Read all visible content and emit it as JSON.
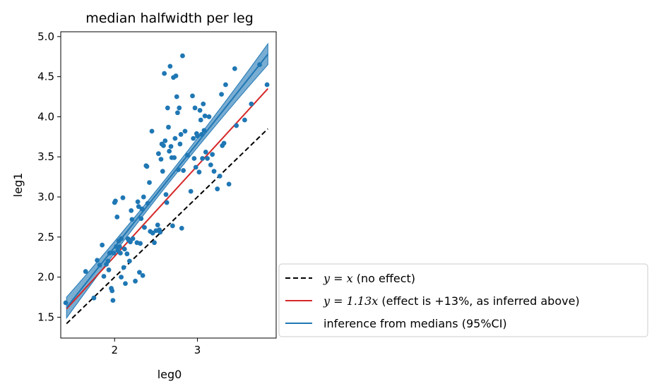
{
  "chart_data": {
    "type": "scatter",
    "title": "median halfwidth per leg",
    "xlabel": "leg0",
    "ylabel": "leg1",
    "xlim": [
      1.35,
      3.95
    ],
    "ylim": [
      1.24,
      5.06
    ],
    "xticks": [
      2,
      3
    ],
    "yticks": [
      1.5,
      2.0,
      2.5,
      3.0,
      3.5,
      4.0,
      4.5,
      5.0
    ],
    "xtick_labels": [
      "2",
      "3"
    ],
    "ytick_labels": [
      "1.5",
      "2.0",
      "2.5",
      "3.0",
      "3.5",
      "4.0",
      "4.5",
      "5.0"
    ],
    "grid": false,
    "legend_position": "outside-lower-right",
    "colors": {
      "points": "#1f77b4",
      "identity_line": "#000000",
      "effect_line": "#d62728",
      "inference_line": "#1f77b4",
      "ci_band": "#1f77b4"
    },
    "legend": [
      {
        "key": "identity",
        "math": "y = x",
        "text": " (no effect)",
        "style": "dashed",
        "color": "#000000"
      },
      {
        "key": "effect",
        "math": "y = 1.13x",
        "text": " (effect is +13%, as inferred above)",
        "style": "solid",
        "color": "#d62728"
      },
      {
        "key": "inference",
        "math": "",
        "text": "inference from medians (95%CI)",
        "style": "solid",
        "color": "#1f77b4"
      }
    ],
    "lines": {
      "identity": {
        "x": [
          1.42,
          3.85
        ],
        "slope": 1.0
      },
      "effect": {
        "x": [
          1.42,
          3.85
        ],
        "slope": 1.13
      },
      "inference": {
        "x": [
          1.42,
          3.85
        ],
        "y": [
          1.62,
          4.78
        ],
        "ci_halfwidth_ends": [
          0.13,
          0.13
        ],
        "ci_halfwidth_mid": 0.05
      }
    },
    "points": [
      [
        1.41,
        1.68
      ],
      [
        1.65,
        2.07
      ],
      [
        1.75,
        1.74
      ],
      [
        1.79,
        2.21
      ],
      [
        1.82,
        2.15
      ],
      [
        1.85,
        2.4
      ],
      [
        1.87,
        2.01
      ],
      [
        1.9,
        2.16
      ],
      [
        1.92,
        2.2
      ],
      [
        1.93,
        2.09
      ],
      [
        1.94,
        2.3
      ],
      [
        1.96,
        1.86
      ],
      [
        1.97,
        1.83
      ],
      [
        1.98,
        1.71
      ],
      [
        1.99,
        2.3
      ],
      [
        2.0,
        2.93
      ],
      [
        2.01,
        2.95
      ],
      [
        2.02,
        2.38
      ],
      [
        2.03,
        2.75
      ],
      [
        2.04,
        2.33
      ],
      [
        2.05,
        2.45
      ],
      [
        2.06,
        2.38
      ],
      [
        2.07,
        2.3
      ],
      [
        2.08,
        2.48
      ],
      [
        2.08,
        2.0
      ],
      [
        2.1,
        2.99
      ],
      [
        2.11,
        2.12
      ],
      [
        2.12,
        2.35
      ],
      [
        2.13,
        1.92
      ],
      [
        2.15,
        2.29
      ],
      [
        2.16,
        2.48
      ],
      [
        2.17,
        2.46
      ],
      [
        2.18,
        2.2
      ],
      [
        2.19,
        2.44
      ],
      [
        2.2,
        2.83
      ],
      [
        2.21,
        2.72
      ],
      [
        2.22,
        2.48
      ],
      [
        2.25,
        1.95
      ],
      [
        2.27,
        2.43
      ],
      [
        2.28,
        2.94
      ],
      [
        2.29,
        2.88
      ],
      [
        2.3,
        2.06
      ],
      [
        2.31,
        2.42
      ],
      [
        2.32,
        2.73
      ],
      [
        2.33,
        2.85
      ],
      [
        2.34,
        2.02
      ],
      [
        2.35,
        3.0
      ],
      [
        2.36,
        2.62
      ],
      [
        2.38,
        3.39
      ],
      [
        2.39,
        3.38
      ],
      [
        2.4,
        2.92
      ],
      [
        2.42,
        3.18
      ],
      [
        2.43,
        2.57
      ],
      [
        2.45,
        3.82
      ],
      [
        2.46,
        2.55
      ],
      [
        2.48,
        2.43
      ],
      [
        2.5,
        2.58
      ],
      [
        2.52,
        2.65
      ],
      [
        2.53,
        3.54
      ],
      [
        2.54,
        2.59
      ],
      [
        2.55,
        2.56
      ],
      [
        2.56,
        3.47
      ],
      [
        2.57,
        3.66
      ],
      [
        2.58,
        3.32
      ],
      [
        2.59,
        3.64
      ],
      [
        2.6,
        4.54
      ],
      [
        2.61,
        3.7
      ],
      [
        2.62,
        3.03
      ],
      [
        2.63,
        2.93
      ],
      [
        2.64,
        4.11
      ],
      [
        2.65,
        3.87
      ],
      [
        2.66,
        3.57
      ],
      [
        2.67,
        4.63
      ],
      [
        2.68,
        3.63
      ],
      [
        2.69,
        3.49
      ],
      [
        2.7,
        2.64
      ],
      [
        2.71,
        4.49
      ],
      [
        2.72,
        3.49
      ],
      [
        2.73,
        3.73
      ],
      [
        2.74,
        4.51
      ],
      [
        2.75,
        4.25
      ],
      [
        2.76,
        4.05
      ],
      [
        2.77,
        3.34
      ],
      [
        2.78,
        4.11
      ],
      [
        2.79,
        3.66
      ],
      [
        2.8,
        3.78
      ],
      [
        2.81,
        2.61
      ],
      [
        2.82,
        4.76
      ],
      [
        2.83,
        3.33
      ],
      [
        2.85,
        3.82
      ],
      [
        2.88,
        3.52
      ],
      [
        2.92,
        3.07
      ],
      [
        2.94,
        4.26
      ],
      [
        2.95,
        3.73
      ],
      [
        2.96,
        3.48
      ],
      [
        2.97,
        4.11
      ],
      [
        2.98,
        3.37
      ],
      [
        2.99,
        3.79
      ],
      [
        3.0,
        3.76
      ],
      [
        3.02,
        3.31
      ],
      [
        3.03,
        4.08
      ],
      [
        3.04,
        3.96
      ],
      [
        3.05,
        3.78
      ],
      [
        3.06,
        3.48
      ],
      [
        3.07,
        4.16
      ],
      [
        3.08,
        3.83
      ],
      [
        3.09,
        4.01
      ],
      [
        3.1,
        3.56
      ],
      [
        3.12,
        3.48
      ],
      [
        3.14,
        4.0
      ],
      [
        3.16,
        3.4
      ],
      [
        3.18,
        3.53
      ],
      [
        3.2,
        3.32
      ],
      [
        3.24,
        3.1
      ],
      [
        3.27,
        3.26
      ],
      [
        3.29,
        4.28
      ],
      [
        3.3,
        3.64
      ],
      [
        3.32,
        3.67
      ],
      [
        3.34,
        4.4
      ],
      [
        3.38,
        3.16
      ],
      [
        3.45,
        4.6
      ],
      [
        3.47,
        3.89
      ],
      [
        3.57,
        3.96
      ],
      [
        3.65,
        4.16
      ],
      [
        3.75,
        4.65
      ],
      [
        3.84,
        4.4
      ]
    ]
  }
}
